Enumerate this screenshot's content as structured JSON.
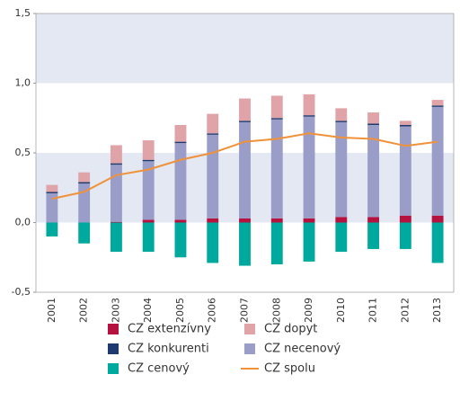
{
  "chart_data": {
    "type": "bar",
    "categories": [
      "2001",
      "2002",
      "2003",
      "2004",
      "2005",
      "2006",
      "2007",
      "2008",
      "2009",
      "2010",
      "2011",
      "2012",
      "2013"
    ],
    "series": [
      {
        "name": "CZ extenzívny",
        "color": "#b5123f",
        "values": [
          0.0,
          0.0,
          0.005,
          0.02,
          0.02,
          0.03,
          0.03,
          0.03,
          0.03,
          0.04,
          0.04,
          0.05,
          0.05
        ]
      },
      {
        "name": "CZ konkurenti",
        "color": "#1f3a6e",
        "values": [
          0.01,
          0.01,
          0.01,
          0.01,
          0.01,
          0.01,
          0.01,
          0.01,
          0.01,
          0.01,
          0.01,
          0.01,
          0.01
        ]
      },
      {
        "name": "CZ cenový",
        "color": "#00a99d",
        "values": [
          -0.1,
          -0.15,
          -0.21,
          -0.21,
          -0.25,
          -0.29,
          -0.31,
          -0.3,
          -0.28,
          -0.21,
          -0.19,
          -0.19,
          -0.29
        ]
      },
      {
        "name": "CZ dopyt",
        "color": "#e0a3a8",
        "values": [
          0.05,
          0.07,
          0.13,
          0.14,
          0.12,
          0.14,
          0.16,
          0.16,
          0.15,
          0.09,
          0.08,
          0.03,
          0.04
        ]
      },
      {
        "name": "CZ necenový",
        "color": "#9a9dc8",
        "values": [
          0.21,
          0.28,
          0.41,
          0.42,
          0.55,
          0.6,
          0.69,
          0.71,
          0.73,
          0.68,
          0.66,
          0.64,
          0.78
        ]
      },
      {
        "name": "CZ spolu",
        "color": "#f0923a",
        "type": "line",
        "values": [
          0.17,
          0.22,
          0.34,
          0.38,
          0.45,
          0.5,
          0.58,
          0.6,
          0.64,
          0.61,
          0.6,
          0.55,
          0.58
        ]
      }
    ],
    "ylim": [
      -0.5,
      1.5
    ],
    "yticks": [
      {
        "value": 1.5,
        "label": "1,5"
      },
      {
        "value": 1.0,
        "label": "1,0"
      },
      {
        "value": 0.5,
        "label": "0,5"
      },
      {
        "value": 0.0,
        "label": "0,0"
      },
      {
        "value": -0.5,
        "label": "-0,5"
      }
    ]
  }
}
